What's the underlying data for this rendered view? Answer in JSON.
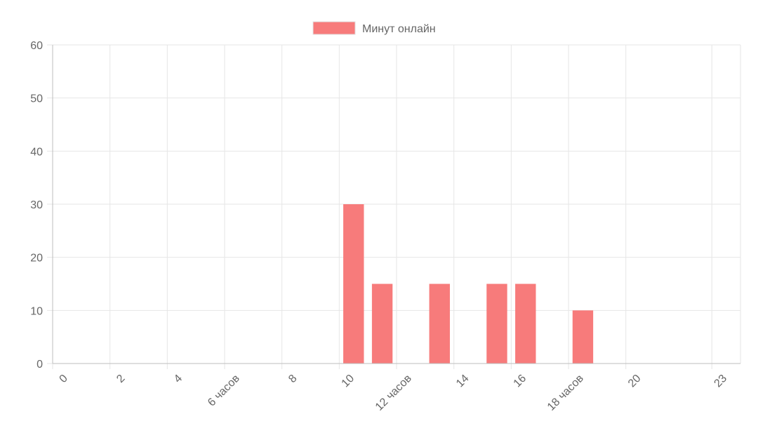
{
  "chart_data": {
    "type": "bar",
    "x": [
      0,
      1,
      2,
      3,
      4,
      5,
      6,
      7,
      8,
      9,
      10,
      11,
      12,
      13,
      14,
      15,
      16,
      17,
      18,
      19,
      20,
      21,
      22,
      23
    ],
    "x_tick_labels": [
      {
        "x": 0,
        "label": "0"
      },
      {
        "x": 2,
        "label": "2"
      },
      {
        "x": 4,
        "label": "4"
      },
      {
        "x": 6,
        "label": "6 часов"
      },
      {
        "x": 8,
        "label": "8"
      },
      {
        "x": 10,
        "label": "10"
      },
      {
        "x": 12,
        "label": "12 часов"
      },
      {
        "x": 14,
        "label": "14"
      },
      {
        "x": 16,
        "label": "16"
      },
      {
        "x": 18,
        "label": "18 часов"
      },
      {
        "x": 20,
        "label": "20"
      },
      {
        "x": 23,
        "label": "23"
      }
    ],
    "series": [
      {
        "name": "Минут онлайн",
        "color": "#f77b7b",
        "values": [
          0,
          0,
          0,
          0,
          0,
          0,
          0,
          0,
          0,
          0,
          30,
          15,
          0,
          15,
          0,
          15,
          15,
          0,
          10,
          0,
          0,
          0,
          0,
          0
        ]
      }
    ],
    "y_ticks": [
      0,
      10,
      20,
      30,
      40,
      50,
      60
    ],
    "ylim": [
      0,
      60
    ],
    "grid": true,
    "legend_position": "top"
  }
}
